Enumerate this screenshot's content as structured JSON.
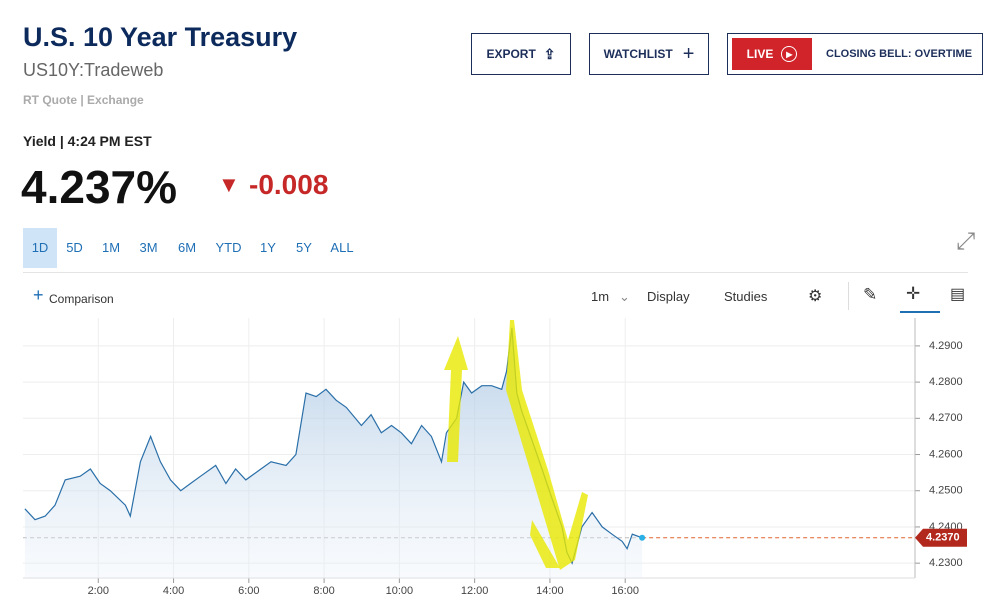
{
  "header": {
    "title": "U.S. 10 Year Treasury",
    "symbol": "US10Y:Tradeweb",
    "source": "RT Quote | Exchange"
  },
  "buttons": {
    "export": "EXPORT",
    "watchlist": "WATCHLIST",
    "live": "LIVE",
    "live_show": "CLOSING BELL: OVERTIME"
  },
  "quote": {
    "label": "Yield | 4:24 PM EST",
    "price": "4.237%",
    "change": "-0.008"
  },
  "tabs": [
    "1D",
    "5D",
    "1M",
    "3M",
    "6M",
    "YTD",
    "1Y",
    "5Y",
    "ALL"
  ],
  "toolbar": {
    "comparison": "Comparison",
    "interval": "1m",
    "display": "Display",
    "studies": "Studies"
  },
  "chart_data": {
    "type": "line",
    "color": "#2a6fa8",
    "grid": true,
    "x": [
      0.05,
      0.32,
      0.59,
      0.85,
      1.12,
      1.52,
      1.79,
      2.05,
      2.32,
      2.72,
      2.85,
      3.12,
      3.39,
      3.65,
      3.92,
      4.19,
      4.45,
      4.72,
      5.12,
      5.39,
      5.65,
      5.92,
      6.32,
      6.59,
      6.99,
      7.25,
      7.52,
      7.79,
      8.05,
      8.32,
      8.59,
      8.99,
      9.25,
      9.52,
      9.79,
      10.05,
      10.32,
      10.59,
      10.85,
      11.12,
      11.25,
      11.52,
      11.71,
      11.92,
      12.19,
      12.45,
      12.72,
      12.85,
      12.99,
      13.12,
      13.25,
      13.52,
      13.79,
      14.05,
      14.32,
      14.45,
      14.59,
      14.72,
      14.85,
      15.12,
      15.39,
      15.65,
      15.92,
      16.05,
      16.19,
      16.45
    ],
    "series": [
      {
        "name": "US10Y",
        "color": "#2a6fa8",
        "values": [
          4.245,
          4.242,
          4.243,
          4.246,
          4.253,
          4.254,
          4.256,
          4.252,
          4.25,
          4.246,
          4.243,
          4.258,
          4.265,
          4.258,
          4.253,
          4.25,
          4.252,
          4.254,
          4.257,
          4.252,
          4.256,
          4.253,
          4.256,
          4.258,
          4.257,
          4.26,
          4.277,
          4.276,
          4.278,
          4.275,
          4.273,
          4.268,
          4.271,
          4.266,
          4.268,
          4.266,
          4.263,
          4.268,
          4.265,
          4.258,
          4.266,
          4.27,
          4.28,
          4.277,
          4.279,
          4.279,
          4.278,
          4.283,
          4.295,
          4.277,
          4.272,
          4.264,
          4.256,
          4.248,
          4.24,
          4.233,
          4.23,
          4.235,
          4.24,
          4.244,
          4.24,
          4.238,
          4.236,
          4.234,
          4.238,
          4.237
        ]
      }
    ],
    "xlim": [
      0,
      23.7
    ],
    "ylim": [
      4.2259,
      4.2977
    ],
    "xticks": [
      {
        "value": 2,
        "label": "2:00"
      },
      {
        "value": 4,
        "label": "4:00"
      },
      {
        "value": 6,
        "label": "6:00"
      },
      {
        "value": 8,
        "label": "8:00"
      },
      {
        "value": 10,
        "label": "10:00"
      },
      {
        "value": 12,
        "label": "12:00"
      },
      {
        "value": 14,
        "label": "14:00"
      },
      {
        "value": 16,
        "label": "16:00"
      }
    ],
    "yticks": [
      {
        "value": 4.23,
        "label": "4.2300"
      },
      {
        "value": 4.24,
        "label": "4.2400"
      },
      {
        "value": 4.25,
        "label": "4.2500"
      },
      {
        "value": 4.26,
        "label": "4.2600"
      },
      {
        "value": 4.27,
        "label": "4.2700"
      },
      {
        "value": 4.28,
        "label": "4.2800"
      },
      {
        "value": 4.29,
        "label": "4.2900"
      }
    ],
    "last": {
      "value": 4.237,
      "label": "4.2370"
    }
  }
}
